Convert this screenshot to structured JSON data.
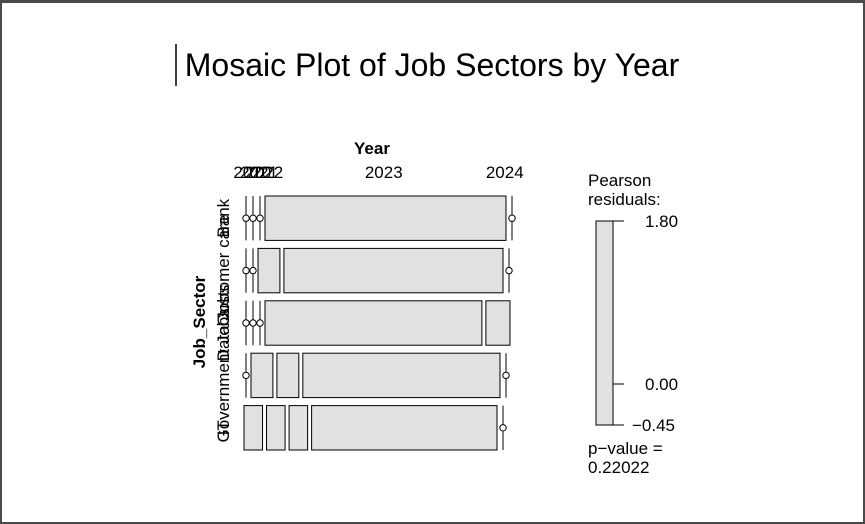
{
  "chart_data": {
    "type": "mosaic",
    "title": "Mosaic Plot of Job Sectors by Year",
    "column_variable": "Year",
    "row_variable": "Job_Sector",
    "columns": [
      "2020",
      "2021",
      "2022",
      "2023",
      "2024"
    ],
    "rows": [
      "Bank",
      "Customer care",
      "Data Jobs",
      "Government Jobs",
      "IT"
    ],
    "counts": [
      [
        0,
        0,
        0,
        12,
        0
      ],
      [
        0,
        0,
        1,
        10,
        0
      ],
      [
        0,
        0,
        0,
        9,
        1
      ],
      [
        0,
        1,
        1,
        9,
        0
      ],
      [
        1,
        1,
        1,
        10,
        0
      ]
    ],
    "residual_legend": {
      "title_line1": "Pearson",
      "title_line2": "residuals:",
      "max_label": "1.80",
      "mid_label": "0.00",
      "min_label": "−0.45",
      "range": [
        -0.45,
        1.8
      ],
      "ticks": [
        1.8,
        0.0,
        -0.45
      ]
    },
    "p_value_line1": "p−value =",
    "p_value_line2": "0.22022",
    "colors": {
      "cell_fill": "#e1e1e1",
      "stroke": "#000000"
    }
  }
}
